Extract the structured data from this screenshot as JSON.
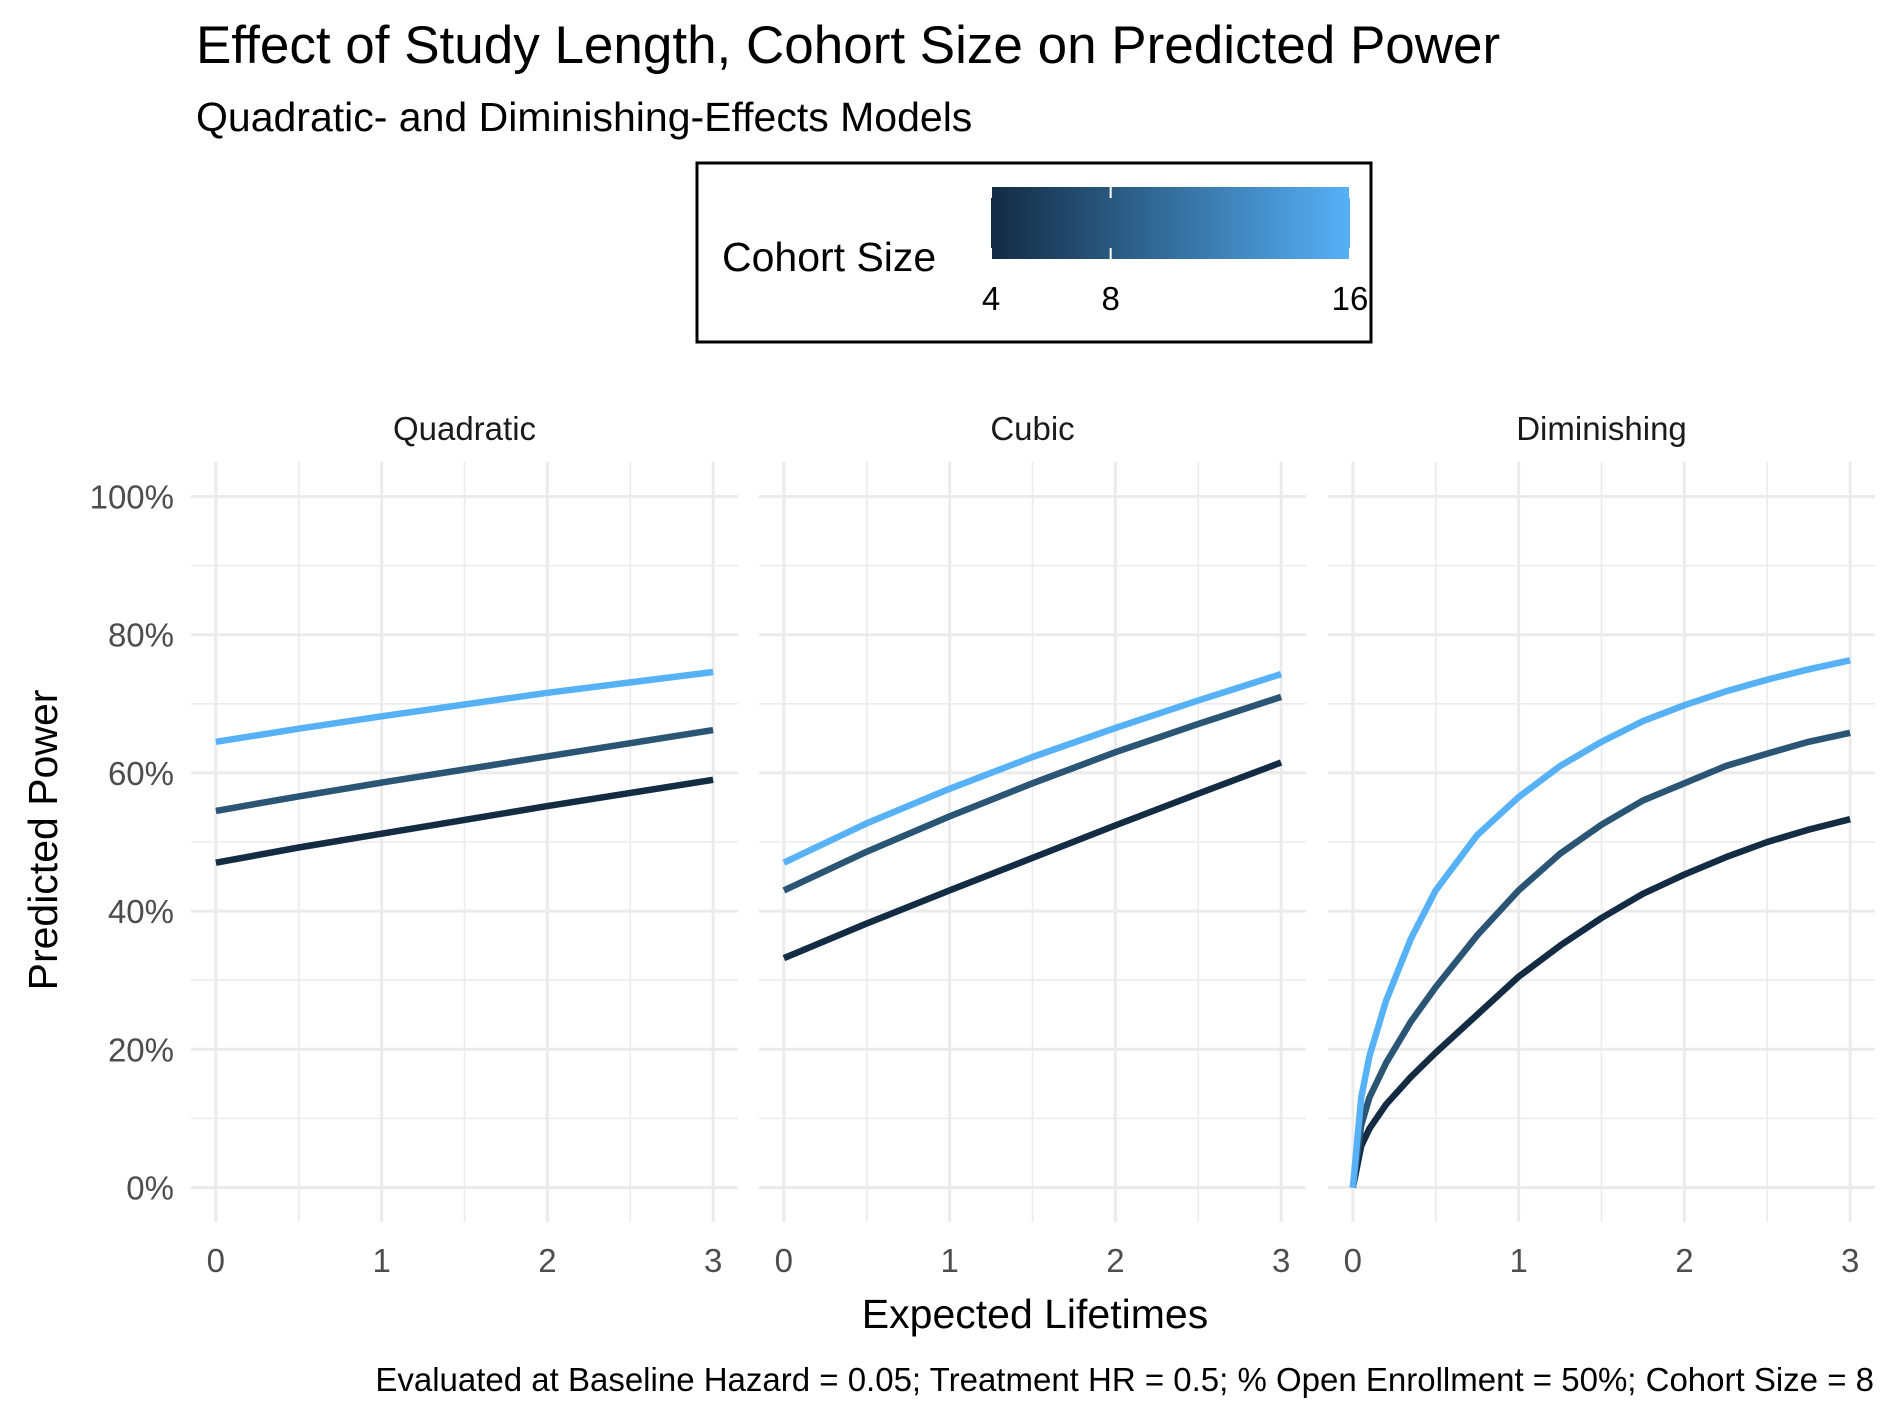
{
  "chart_data": {
    "type": "line",
    "title": "Effect of Study Length, Cohort Size on Predicted Power",
    "subtitle": "Quadratic- and Diminishing-Effects Models",
    "xlabel": "Expected Lifetimes",
    "ylabel": "Predicted Power",
    "caption": "Evaluated at Baseline Hazard = 0.05; Treatment HR = 0.5; % Open Enrollment = 50%; Cohort Size = 8",
    "xlim": [
      0,
      3
    ],
    "ylim": [
      0,
      1
    ],
    "x_ticks": [
      "0",
      "1",
      "2",
      "3"
    ],
    "y_ticks": [
      "0%",
      "20%",
      "40%",
      "60%",
      "80%",
      "100%"
    ],
    "grid": true,
    "legend": {
      "title": "Cohort Size",
      "position": "top",
      "type": "colorbar",
      "ticks": [
        "4",
        "8",
        "16"
      ],
      "tick_values": [
        4,
        8,
        16
      ],
      "range": [
        4,
        16
      ],
      "color_low": "#132B43",
      "color_high": "#56B1F7"
    },
    "panels": [
      {
        "name": "Quadratic",
        "series": [
          {
            "cohort_size": 4,
            "color": "#132B43",
            "x": [
              0,
              0.5,
              1,
              1.5,
              2,
              2.5,
              3
            ],
            "y": [
              0.47,
              0.492,
              0.512,
              0.532,
              0.552,
              0.571,
              0.59
            ]
          },
          {
            "cohort_size": 8,
            "color": "#2A5575",
            "x": [
              0,
              0.5,
              1,
              1.5,
              2,
              2.5,
              3
            ],
            "y": [
              0.545,
              0.566,
              0.586,
              0.605,
              0.624,
              0.643,
              0.662
            ]
          },
          {
            "cohort_size": 16,
            "color": "#56B1F7",
            "x": [
              0,
              0.5,
              1,
              1.5,
              2,
              2.5,
              3
            ],
            "y": [
              0.645,
              0.664,
              0.682,
              0.699,
              0.716,
              0.731,
              0.746
            ]
          }
        ]
      },
      {
        "name": "Cubic",
        "series": [
          {
            "cohort_size": 4,
            "color": "#132B43",
            "x": [
              0,
              0.5,
              1,
              1.5,
              2,
              2.5,
              3
            ],
            "y": [
              0.332,
              0.382,
              0.43,
              0.477,
              0.524,
              0.57,
              0.615
            ]
          },
          {
            "cohort_size": 8,
            "color": "#2A5575",
            "x": [
              0,
              0.5,
              1,
              1.5,
              2,
              2.5,
              3
            ],
            "y": [
              0.43,
              0.486,
              0.537,
              0.585,
              0.63,
              0.671,
              0.71
            ]
          },
          {
            "cohort_size": 16,
            "color": "#56B1F7",
            "x": [
              0,
              0.5,
              1,
              1.5,
              2,
              2.5,
              3
            ],
            "y": [
              0.47,
              0.527,
              0.577,
              0.623,
              0.665,
              0.705,
              0.743
            ]
          }
        ]
      },
      {
        "name": "Diminishing",
        "series": [
          {
            "cohort_size": 4,
            "color": "#132B43",
            "x": [
              0,
              0.05,
              0.1,
              0.2,
              0.35,
              0.5,
              0.75,
              1,
              1.25,
              1.5,
              1.75,
              2,
              2.25,
              2.5,
              2.75,
              3
            ],
            "y": [
              0,
              0.06,
              0.085,
              0.12,
              0.16,
              0.195,
              0.25,
              0.305,
              0.35,
              0.39,
              0.425,
              0.453,
              0.478,
              0.5,
              0.518,
              0.533
            ]
          },
          {
            "cohort_size": 8,
            "color": "#2A5575",
            "x": [
              0,
              0.05,
              0.1,
              0.2,
              0.35,
              0.5,
              0.75,
              1,
              1.25,
              1.5,
              1.75,
              2,
              2.25,
              2.5,
              2.75,
              3
            ],
            "y": [
              0,
              0.09,
              0.13,
              0.18,
              0.24,
              0.29,
              0.365,
              0.43,
              0.483,
              0.525,
              0.56,
              0.585,
              0.61,
              0.628,
              0.645,
              0.658
            ]
          },
          {
            "cohort_size": 16,
            "color": "#56B1F7",
            "x": [
              0,
              0.05,
              0.1,
              0.2,
              0.35,
              0.5,
              0.75,
              1,
              1.25,
              1.5,
              1.75,
              2,
              2.25,
              2.5,
              2.75,
              3
            ],
            "y": [
              0,
              0.13,
              0.19,
              0.27,
              0.36,
              0.43,
              0.51,
              0.565,
              0.61,
              0.645,
              0.675,
              0.698,
              0.718,
              0.735,
              0.75,
              0.763
            ]
          }
        ]
      }
    ]
  }
}
